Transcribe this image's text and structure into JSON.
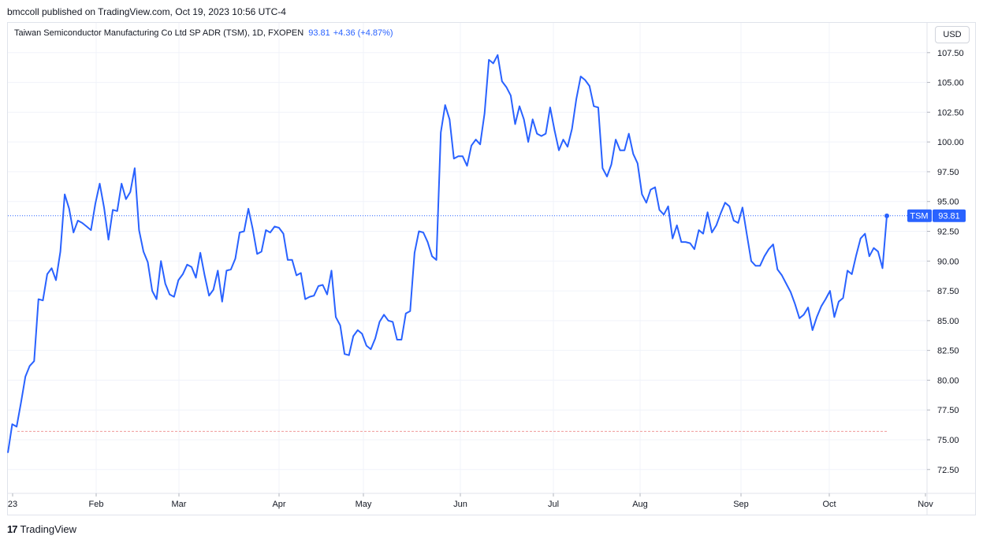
{
  "header": {
    "published": "bmccoll published on TradingView.com, Oct 19, 2023 10:56 UTC-4"
  },
  "legend": {
    "title": "Taiwan Semiconductor Manufacturing Co Ltd SP ADR (TSM), 1D, FXOPEN",
    "price": "93.81",
    "change": "+4.36 (+4.87%)"
  },
  "currency_button": "USD",
  "price_tag": {
    "symbol": "TSM",
    "value": "93.81"
  },
  "footer": {
    "brand": "TradingView"
  },
  "colors": {
    "line": "#2962ff",
    "grid": "#f0f3fa",
    "border": "#e0e3eb",
    "baseline": "#ef9a9a"
  },
  "chart_data": {
    "type": "line",
    "title": "Taiwan Semiconductor Manufacturing Co Ltd SP ADR (TSM), 1D, FXOPEN",
    "xlabel": "",
    "ylabel": "",
    "x_ticks": [
      "23",
      "Feb",
      "Mar",
      "Apr",
      "May",
      "Jun",
      "Jul",
      "Aug",
      "Sep",
      "Oct",
      "Nov"
    ],
    "y_ticks": [
      "72.50",
      "75.00",
      "77.50",
      "80.00",
      "82.50",
      "85.00",
      "87.50",
      "90.00",
      "92.50",
      "95.00",
      "97.50",
      "100.00",
      "102.50",
      "105.00",
      "107.50"
    ],
    "ylim": [
      70.5,
      110.0
    ],
    "baseline_value": 75.7,
    "last_price_line": 93.81,
    "grid": true,
    "series": [
      {
        "values": [
          73.9,
          76.3,
          76.1,
          78.1,
          80.3,
          81.2,
          81.6,
          86.8,
          86.7,
          88.9,
          89.4,
          88.4,
          90.8,
          95.6,
          94.4,
          92.4,
          93.4,
          93.2,
          92.9,
          92.6,
          94.8,
          96.5,
          94.5,
          91.8,
          94.3,
          94.2,
          96.5,
          95.2,
          95.8,
          97.8,
          92.6,
          90.8,
          89.9,
          87.5,
          86.8,
          90.0,
          88.1,
          87.2,
          87.0,
          88.4,
          88.9,
          89.7,
          89.5,
          88.6,
          90.7,
          88.8,
          87.1,
          87.6,
          89.2,
          86.6,
          89.2,
          89.3,
          90.2,
          92.4,
          92.5,
          94.4,
          92.7,
          90.6,
          90.8,
          92.6,
          92.4,
          92.9,
          92.8,
          92.3,
          90.1,
          90.1,
          88.8,
          89.0,
          86.8,
          87.0,
          87.1,
          87.9,
          88.0,
          87.2,
          89.2,
          85.3,
          84.6,
          82.2,
          82.1,
          83.7,
          84.2,
          83.9,
          82.9,
          82.6,
          83.5,
          84.9,
          85.5,
          85.0,
          84.9,
          83.4,
          83.4,
          85.6,
          85.8,
          90.7,
          92.5,
          92.4,
          91.6,
          90.4,
          90.1,
          100.8,
          103.1,
          101.9,
          98.6,
          98.8,
          98.8,
          98.0,
          99.7,
          100.2,
          99.8,
          102.4,
          106.9,
          106.6,
          107.3,
          105.1,
          104.6,
          103.9,
          101.5,
          103.0,
          101.9,
          100.0,
          101.9,
          100.7,
          100.5,
          100.7,
          102.9,
          101.0,
          99.3,
          100.2,
          99.6,
          101.1,
          103.6,
          105.5,
          105.2,
          104.7,
          103.0,
          102.9,
          97.8,
          97.1,
          98.1,
          100.2,
          99.3,
          99.3,
          100.7,
          99.0,
          98.2,
          95.6,
          94.9,
          96.0,
          96.2,
          94.3,
          93.9,
          94.6,
          91.9,
          93.0,
          91.6,
          91.6,
          91.5,
          91.0,
          92.6,
          92.3,
          94.1,
          92.4,
          93.0,
          94.0,
          94.9,
          94.6,
          93.4,
          93.2,
          94.5,
          92.2,
          90.0,
          89.6,
          89.6,
          90.4,
          91.0,
          91.4,
          89.3,
          88.8,
          88.1,
          87.4,
          86.4,
          85.2,
          85.5,
          86.1,
          84.2,
          85.3,
          86.2,
          86.8,
          87.5,
          85.3,
          86.6,
          86.9,
          89.2,
          88.9,
          90.5,
          91.9,
          92.3,
          90.4,
          91.1,
          90.8,
          89.4,
          93.8
        ]
      }
    ]
  }
}
